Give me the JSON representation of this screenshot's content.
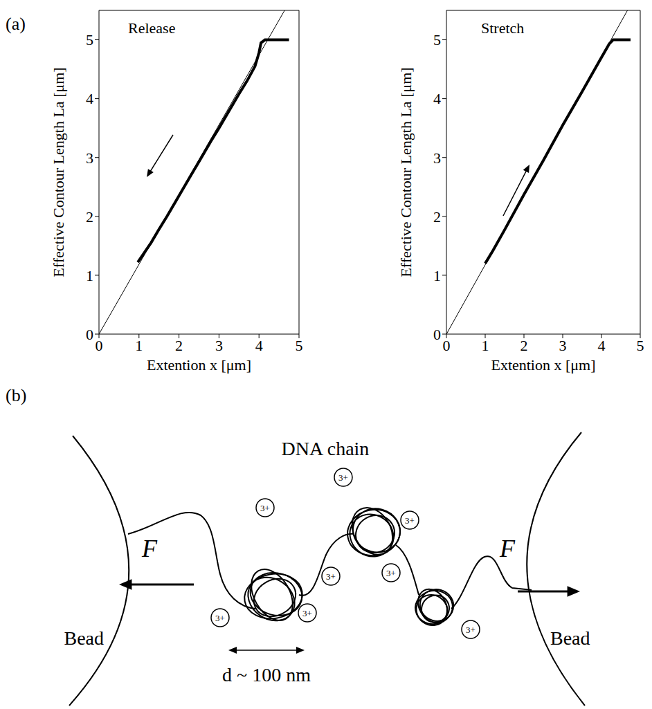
{
  "chart_label": "(a)",
  "chart_data": [
    {
      "type": "line",
      "annotation": "Release",
      "x_label": "Extention x [μm]",
      "y_label": "Effective Contour Length La [μm]",
      "xlim": [
        0,
        5
      ],
      "ylim": [
        0,
        5.5
      ],
      "xticks": [
        0,
        1,
        2,
        3,
        4,
        5
      ],
      "yticks": [
        0,
        1,
        2,
        3,
        4,
        5
      ],
      "grid": false,
      "series": [
        {
          "color": "#000000",
          "x": [
            0.97,
            1.1,
            1.3,
            1.5,
            1.7,
            2.0,
            2.3,
            2.5,
            2.8,
            3.0,
            3.3,
            3.5,
            3.7,
            3.9,
            4.0,
            4.05,
            4.15,
            4.4,
            4.75
          ],
          "values": [
            1.22,
            1.35,
            1.55,
            1.78,
            2.0,
            2.35,
            2.7,
            2.93,
            3.28,
            3.5,
            3.85,
            4.08,
            4.3,
            4.55,
            4.78,
            4.95,
            5.0,
            5.0,
            5.0
          ]
        },
        {
          "color": "#000000",
          "x": [
            0,
            4.64
          ],
          "values": [
            0,
            5.5
          ]
        }
      ]
    },
    {
      "type": "line",
      "annotation": "Stretch",
      "x_label": "Extention x [μm]",
      "y_label": "Effective Contour Length La [μm]",
      "xlim": [
        0,
        5
      ],
      "ylim": [
        0,
        5.5
      ],
      "xticks": [
        0,
        1,
        2,
        3,
        4,
        5
      ],
      "yticks": [
        0,
        1,
        2,
        3,
        4,
        5
      ],
      "grid": false,
      "series": [
        {
          "color": "#000000",
          "x": [
            1.0,
            1.2,
            1.5,
            2.0,
            2.5,
            3.0,
            3.5,
            3.8,
            4.0,
            4.2,
            4.3,
            4.5,
            4.75
          ],
          "values": [
            1.2,
            1.42,
            1.77,
            2.37,
            2.95,
            3.55,
            4.12,
            4.47,
            4.7,
            4.93,
            5.0,
            5.0,
            5.0
          ]
        },
        {
          "color": "#000000",
          "x": [
            0,
            4.67
          ],
          "values": [
            0,
            5.5
          ]
        }
      ]
    }
  ],
  "diagram": {
    "label": "(b)",
    "title": "DNA chain",
    "forces": [
      "F",
      "F"
    ],
    "beads": [
      "Bead",
      "Bead"
    ],
    "ions": [
      "3+",
      "3+",
      "3+",
      "3+",
      "3+",
      "3+",
      "3+",
      "3+"
    ],
    "size_label": "d ~ 100 nm"
  }
}
